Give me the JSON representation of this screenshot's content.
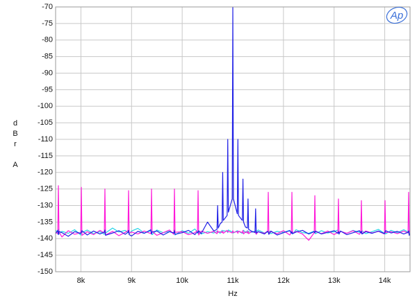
{
  "chart_data": {
    "type": "line",
    "ylabel": "dBr A",
    "xlabel": "Hz",
    "logo": "Ap",
    "grid": true,
    "xlim": [
      7500,
      14500
    ],
    "ylim": [
      -150,
      -70
    ],
    "yticks": [
      -70,
      -75,
      -80,
      -85,
      -90,
      -95,
      -100,
      -105,
      -110,
      -115,
      -120,
      -125,
      -130,
      -135,
      -140,
      -145,
      -150
    ],
    "xticks": [
      {
        "value": 8000,
        "label": "8k"
      },
      {
        "value": 9000,
        "label": "9k"
      },
      {
        "value": 10000,
        "label": "10k"
      },
      {
        "value": 11000,
        "label": "11k"
      },
      {
        "value": 12000,
        "label": "12k"
      },
      {
        "value": 13000,
        "label": "13k"
      },
      {
        "value": 14000,
        "label": "14k"
      }
    ],
    "x": [
      7500,
      7543,
      7555,
      7567,
      7625,
      7750,
      7875,
      7996,
      8008,
      8020,
      8125,
      8250,
      8375,
      8462,
      8474,
      8486,
      8625,
      8750,
      8875,
      8929,
      8941,
      8953,
      9000,
      9125,
      9250,
      9382,
      9394,
      9406,
      9500,
      9625,
      9750,
      9835,
      9847,
      9859,
      10000,
      10125,
      10250,
      10302,
      10314,
      10326,
      10375,
      10500,
      10625,
      10688,
      10700,
      10712,
      10750,
      10788,
      10800,
      10812,
      10888,
      10900,
      10912,
      10988,
      11000,
      11012,
      11088,
      11100,
      11112,
      11188,
      11200,
      11212,
      11250,
      11288,
      11300,
      11312,
      11375,
      11438,
      11450,
      11462,
      11500,
      11625,
      11688,
      11700,
      11712,
      11750,
      11875,
      12000,
      12125,
      12155,
      12167,
      12179,
      12250,
      12375,
      12500,
      12608,
      12620,
      12632,
      12750,
      12875,
      13000,
      13074,
      13086,
      13098,
      13125,
      13250,
      13375,
      13500,
      13527,
      13539,
      13551,
      13625,
      13750,
      13875,
      13994,
      14006,
      14018,
      14125,
      14250,
      14375,
      14460,
      14472,
      14484,
      14500
    ],
    "series": [
      {
        "color": "#22d3e6",
        "values": [
          -137.5,
          -138,
          -137.2,
          -138.6,
          -137.8,
          -138.4,
          -137.3,
          -138.9,
          -137.7,
          -138.2,
          -137.4,
          -138.5,
          -137.9,
          -138.7,
          -137.6,
          -138.3,
          -136.8,
          -138,
          -137.5,
          -138.2,
          -137.9,
          -138.6,
          -137.7,
          -136.9,
          -138.3,
          -137.6,
          -138.1,
          -138.8,
          -137.4,
          -138.2,
          -137.8,
          -138.5,
          -137.3,
          -138.9,
          -137.6,
          -138.4,
          -137.1,
          -138,
          -138.5,
          -137.7,
          -138.6,
          -137.9,
          -138.3,
          -137.8,
          -138.1,
          -137.9,
          -138.4,
          -137.5,
          -138,
          -137.6,
          -137.8,
          -138.2,
          -137.4,
          -138,
          -137.7,
          -138.3,
          -137.6,
          -138.1,
          -137.8,
          -138.4,
          -137.9,
          -137.5,
          -138.2,
          -137.6,
          -138.3,
          -137.9,
          -138.1,
          -137.7,
          -138.4,
          -137.9,
          -137.4,
          -138.3,
          -137.9,
          -138.2,
          -137.6,
          -138.5,
          -137.8,
          -138.1,
          -137.5,
          -138.4,
          -137.9,
          -138.6,
          -137.3,
          -138.2,
          -138.4,
          -137.7,
          -138.1,
          -138.5,
          -137.6,
          -138.3,
          -137.9,
          -137.4,
          -138.2,
          -138.7,
          -137.8,
          -138.4,
          -137.5,
          -138.1,
          -137.8,
          -138.3,
          -137.6,
          -138.5,
          -137.9,
          -137.2,
          -138.4,
          -137.8,
          -138.6,
          -137.5,
          -138.2,
          -137.3,
          -138,
          -137.6,
          -138.4,
          -137.9
        ]
      },
      {
        "color": "#ff1ad9",
        "values": [
          -138,
          -138.5,
          -124,
          -138,
          -139.5,
          -137.6,
          -138.7,
          -138.2,
          -124.5,
          -139,
          -137.9,
          -138.8,
          -137.5,
          -138.3,
          -125,
          -138.9,
          -137.8,
          -139.1,
          -138.1,
          -137.6,
          -125.5,
          -138.4,
          -138,
          -138.6,
          -137.7,
          -138.5,
          -125,
          -137.8,
          -139,
          -138.2,
          -137.4,
          -138.7,
          -125,
          -138.1,
          -137.9,
          -138.8,
          -138.2,
          -137.6,
          -125.5,
          -138.9,
          -137.7,
          -138.4,
          -137.8,
          -138.5,
          -137.6,
          -138.1,
          -137.9,
          -138.2,
          -137.7,
          -138.4,
          -137.5,
          -138,
          -137.8,
          -138.3,
          -137.6,
          -138.1,
          -137.9,
          -138.4,
          -137.7,
          -138.2,
          -137.5,
          -138.6,
          -137.9,
          -138.3,
          -137.7,
          -138.5,
          -137.8,
          -138.2,
          -137.6,
          -138.7,
          -137.9,
          -138.4,
          -137.7,
          -126,
          -138.6,
          -137.9,
          -138.5,
          -137.6,
          -138.9,
          -138.1,
          -126,
          -138.4,
          -137.8,
          -138.6,
          -140.5,
          -138.2,
          -127,
          -137.9,
          -138.5,
          -137.7,
          -138.8,
          -138.1,
          -128,
          -138.6,
          -137.8,
          -138.4,
          -137.6,
          -138.7,
          -138,
          -128.5,
          -138.5,
          -137.7,
          -138.3,
          -137.8,
          -138.6,
          -128.5,
          -138.2,
          -137.9,
          -138.5,
          -137.7,
          -138.3,
          -126,
          -138.1,
          -137.8
        ]
      },
      {
        "color": "#1f1fe6",
        "values": [
          -138.5,
          -137.5,
          -138.8,
          -137.8,
          -138.2,
          -139.3,
          -137.9,
          -138.4,
          -138.1,
          -137.6,
          -138.9,
          -137.7,
          -138.6,
          -138,
          -137.4,
          -139,
          -138.3,
          -137.6,
          -138.7,
          -138.1,
          -137.5,
          -138.8,
          -139.2,
          -137.8,
          -138.4,
          -137.3,
          -138.6,
          -138,
          -137.7,
          -138.9,
          -137.9,
          -138.3,
          -137.6,
          -138.7,
          -138.2,
          -137.5,
          -138.8,
          -137.9,
          -138.3,
          -137.6,
          -138.5,
          -135,
          -137.7,
          -137.2,
          -130,
          -136.8,
          -135.5,
          -135,
          -120,
          -134.5,
          -133,
          -110,
          -132,
          -128,
          -70,
          -128,
          -132.5,
          -110,
          -133,
          -134.5,
          -122,
          -135,
          -136.5,
          -136.8,
          -128,
          -137.2,
          -137.8,
          -138.1,
          -131,
          -138.3,
          -137.9,
          -138.6,
          -137.8,
          -138.1,
          -138.7,
          -137.7,
          -138.9,
          -138.2,
          -137.6,
          -138.4,
          -137.9,
          -138.5,
          -138,
          -137.5,
          -138.6,
          -137.9,
          -138.3,
          -137.7,
          -138.6,
          -138.1,
          -137.6,
          -138.4,
          -137.9,
          -138.5,
          -137.7,
          -138.8,
          -138.2,
          -137.6,
          -138.3,
          -137.8,
          -138.6,
          -137.9,
          -138.4,
          -137.7,
          -138.5,
          -138,
          -137.6,
          -138.3,
          -137.8,
          -138.6,
          -138.1,
          -137.7,
          -139,
          -138.4
        ]
      }
    ]
  }
}
